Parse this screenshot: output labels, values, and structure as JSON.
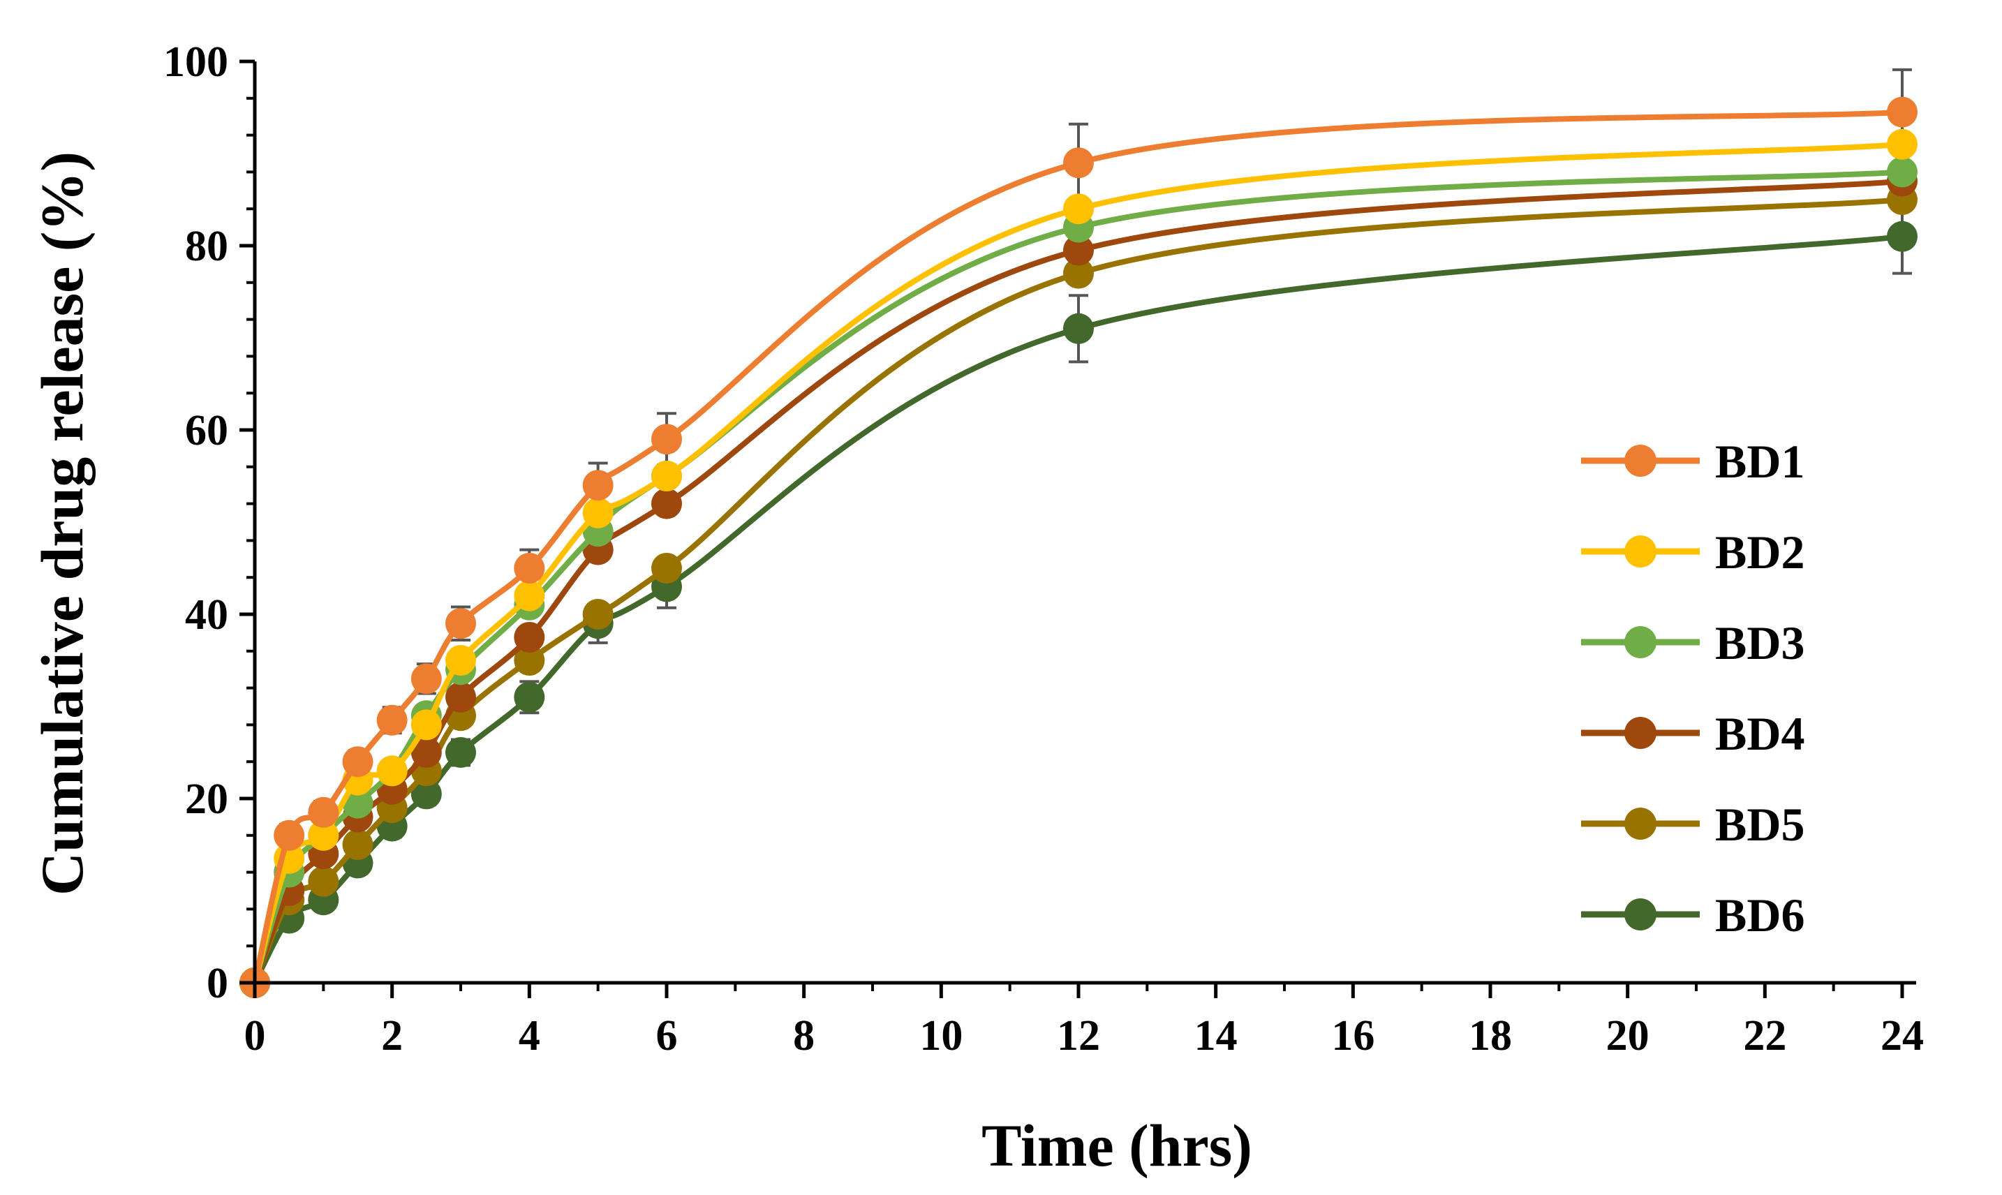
{
  "chart_data": {
    "type": "line",
    "xlabel": "Time (hrs)",
    "ylabel": "Cumulative drug release (%)",
    "xlim": [
      0,
      24
    ],
    "ylim": [
      0,
      100
    ],
    "x_ticks": [
      0,
      2,
      4,
      6,
      8,
      10,
      12,
      14,
      16,
      18,
      20,
      22,
      24
    ],
    "y_ticks": [
      0,
      20,
      40,
      60,
      80,
      100
    ],
    "grid": false,
    "legend_position": "right",
    "smooth_lines": true,
    "x": [
      0,
      0.5,
      1,
      1.5,
      2,
      2.5,
      3,
      4,
      5,
      6,
      12,
      24
    ],
    "series": [
      {
        "name": "BD1",
        "color": "#ED7D31",
        "values": [
          0,
          16,
          18.5,
          24,
          28.5,
          33,
          39,
          45,
          54,
          59,
          89,
          94.5
        ],
        "errors": [
          0,
          1.2,
          1.2,
          1.2,
          1.4,
          1.6,
          1.8,
          2,
          2.4,
          2.8,
          4.2,
          4.6
        ]
      },
      {
        "name": "BD2",
        "color": "#FFC000",
        "values": [
          0,
          13.5,
          16,
          22,
          23,
          28,
          35,
          42,
          51,
          55,
          84,
          91
        ],
        "errors": [
          0,
          0,
          0,
          0,
          0,
          0,
          0,
          0,
          0,
          0,
          0,
          0
        ]
      },
      {
        "name": "BD3",
        "color": "#70AD47",
        "values": [
          0,
          12,
          16,
          19.5,
          23,
          29,
          34,
          41,
          49,
          55,
          82,
          88
        ],
        "errors": [
          0,
          0,
          0,
          0,
          0,
          0,
          0,
          0,
          0,
          0,
          0,
          0
        ]
      },
      {
        "name": "BD4",
        "color": "#9E480E",
        "values": [
          0,
          10,
          14,
          18,
          21,
          25,
          31,
          37.5,
          47,
          52,
          79.5,
          87
        ],
        "errors": [
          0,
          0,
          0,
          0,
          0,
          0,
          0,
          0,
          0,
          0,
          0,
          0
        ]
      },
      {
        "name": "BD5",
        "color": "#997300",
        "values": [
          0,
          9,
          11,
          15,
          19,
          23,
          29,
          35,
          40,
          45,
          77,
          85
        ],
        "errors": [
          0,
          0,
          0,
          0,
          0,
          0,
          0,
          0,
          0,
          0,
          0,
          0
        ]
      },
      {
        "name": "BD6",
        "color": "#43682B",
        "values": [
          0,
          7,
          9,
          13,
          17,
          20.5,
          25,
          31,
          39,
          43,
          71,
          81
        ],
        "errors": [
          0,
          0.8,
          0.9,
          1,
          1.2,
          1.2,
          1.4,
          1.7,
          2.1,
          2.3,
          3.6,
          4
        ]
      }
    ]
  }
}
